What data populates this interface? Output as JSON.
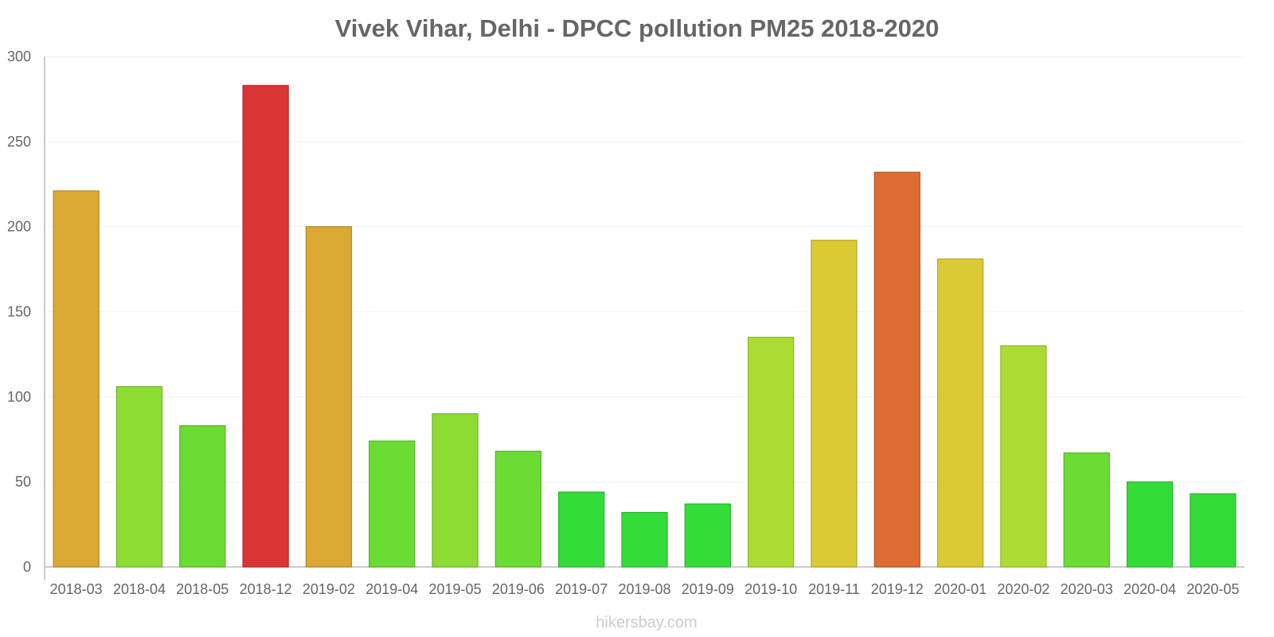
{
  "chart_data": {
    "type": "bar",
    "title": "Vivek Vihar, Delhi - DPCC pollution PM25 2018-2020",
    "xlabel": "",
    "ylabel": "",
    "ylim": [
      0,
      300
    ],
    "yticks": [
      0,
      50,
      100,
      150,
      200,
      250,
      300
    ],
    "categories": [
      "2018-03",
      "2018-04",
      "2018-05",
      "2018-12",
      "2019-02",
      "2019-04",
      "2019-05",
      "2019-06",
      "2019-07",
      "2019-08",
      "2019-09",
      "2019-10",
      "2019-11",
      "2019-12",
      "2020-01",
      "2020-02",
      "2020-03",
      "2020-04",
      "2020-05"
    ],
    "values": [
      221,
      106,
      83,
      283,
      200,
      74,
      90,
      68,
      44,
      32,
      37,
      135,
      192,
      232,
      181,
      130,
      67,
      50,
      43
    ],
    "colors": [
      "#dba834",
      "#8cdc34",
      "#6adc34",
      "#db3434",
      "#dba834",
      "#6adc34",
      "#8cdc34",
      "#6adc34",
      "#34dc3a",
      "#34dc3a",
      "#34dc3a",
      "#acdc34",
      "#dbca34",
      "#db6c34",
      "#dbca34",
      "#acdc34",
      "#6adc34",
      "#34dc3a",
      "#34dc3a"
    ],
    "grid": true,
    "legend": "none"
  },
  "watermark": "hikersbay.com"
}
